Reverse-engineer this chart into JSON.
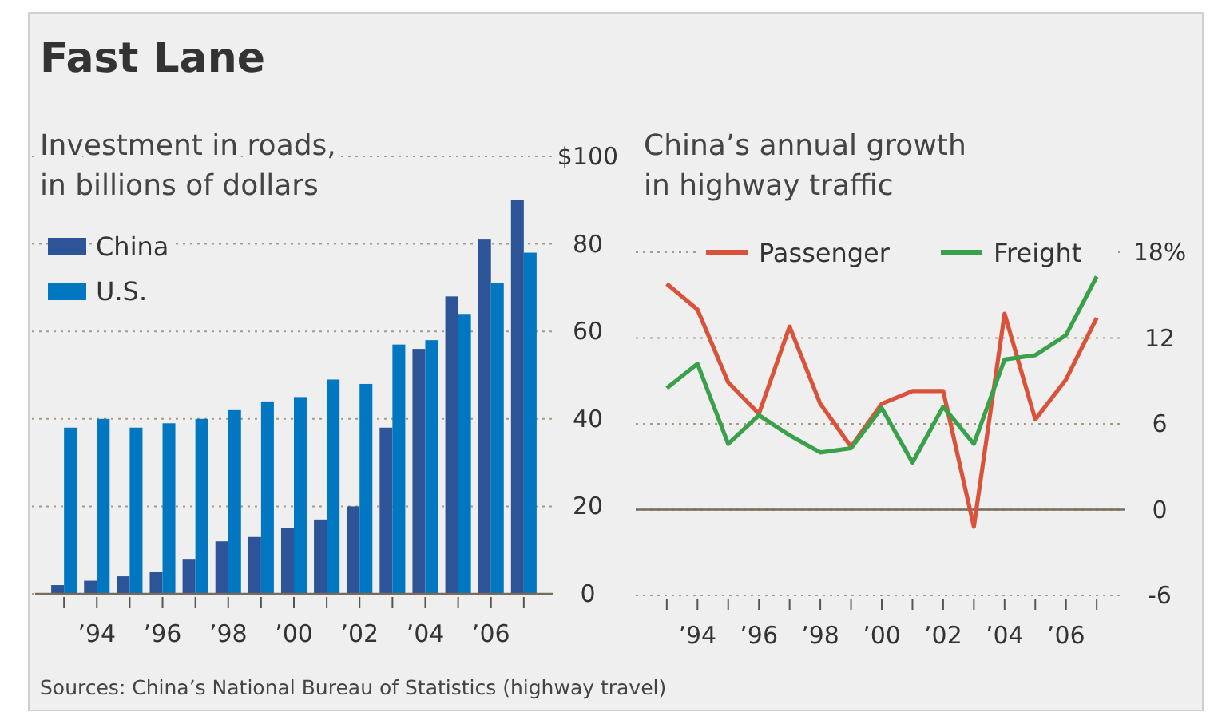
{
  "chart_data": [
    {
      "type": "bar",
      "title": "Fast Lane",
      "subtitle": "Investment in roads, in billions of dollars",
      "categories": [
        null,
        "’94",
        null,
        "’96",
        null,
        "’98",
        null,
        "’00",
        null,
        "’02",
        null,
        "’04",
        null,
        "’06",
        null
      ],
      "series": [
        {
          "name": "China",
          "color": "#2c5496",
          "values": [
            2,
            3,
            4,
            5,
            8,
            12,
            13,
            15,
            17,
            20,
            38,
            56,
            68,
            81,
            90
          ]
        },
        {
          "name": "U.S.",
          "color": "#0077c0",
          "values": [
            38,
            40,
            38,
            39,
            40,
            42,
            44,
            45,
            49,
            48,
            57,
            58,
            64,
            71,
            78
          ]
        }
      ],
      "ylim": [
        0,
        100
      ],
      "yticks": [
        0,
        20,
        40,
        60,
        80,
        {
          "value": 100,
          "label": "$100"
        }
      ],
      "grid": "y",
      "legend": "top left",
      "annotations": [
        "Sources: China’s National Bureau of Statistics (highway travel)"
      ]
    },
    {
      "type": "line",
      "title": "China’s annual growth in highway traffic",
      "categories": [
        null,
        "’94",
        null,
        "’96",
        null,
        "’98",
        null,
        "’00",
        null,
        "’02",
        null,
        "’04",
        null,
        "’06",
        null
      ],
      "series": [
        {
          "name": "Passenger",
          "color": "#d9533b",
          "values": [
            15.8,
            14.0,
            8.9,
            6.7,
            12.8,
            7.4,
            4.4,
            7.4,
            8.3,
            8.3,
            -1.2,
            13.7,
            6.3,
            9.1,
            13.4
          ]
        },
        {
          "name": "Freight",
          "color": "#3aa14a",
          "values": [
            8.5,
            10.2,
            4.6,
            6.6,
            5.2,
            4.0,
            4.3,
            7.1,
            3.3,
            7.2,
            4.6,
            10.5,
            10.8,
            12.2,
            16.3
          ]
        }
      ],
      "ylim": [
        -6,
        18
      ],
      "yticks": [
        -6,
        0,
        6,
        12,
        {
          "value": 18,
          "label": "18%"
        }
      ],
      "grid": "y",
      "legend": "top",
      "marker": "none",
      "line_style": "solid",
      "ref_lines": [
        {
          "axis": "y",
          "value": 0,
          "color": "#7a6a5a"
        }
      ]
    }
  ]
}
